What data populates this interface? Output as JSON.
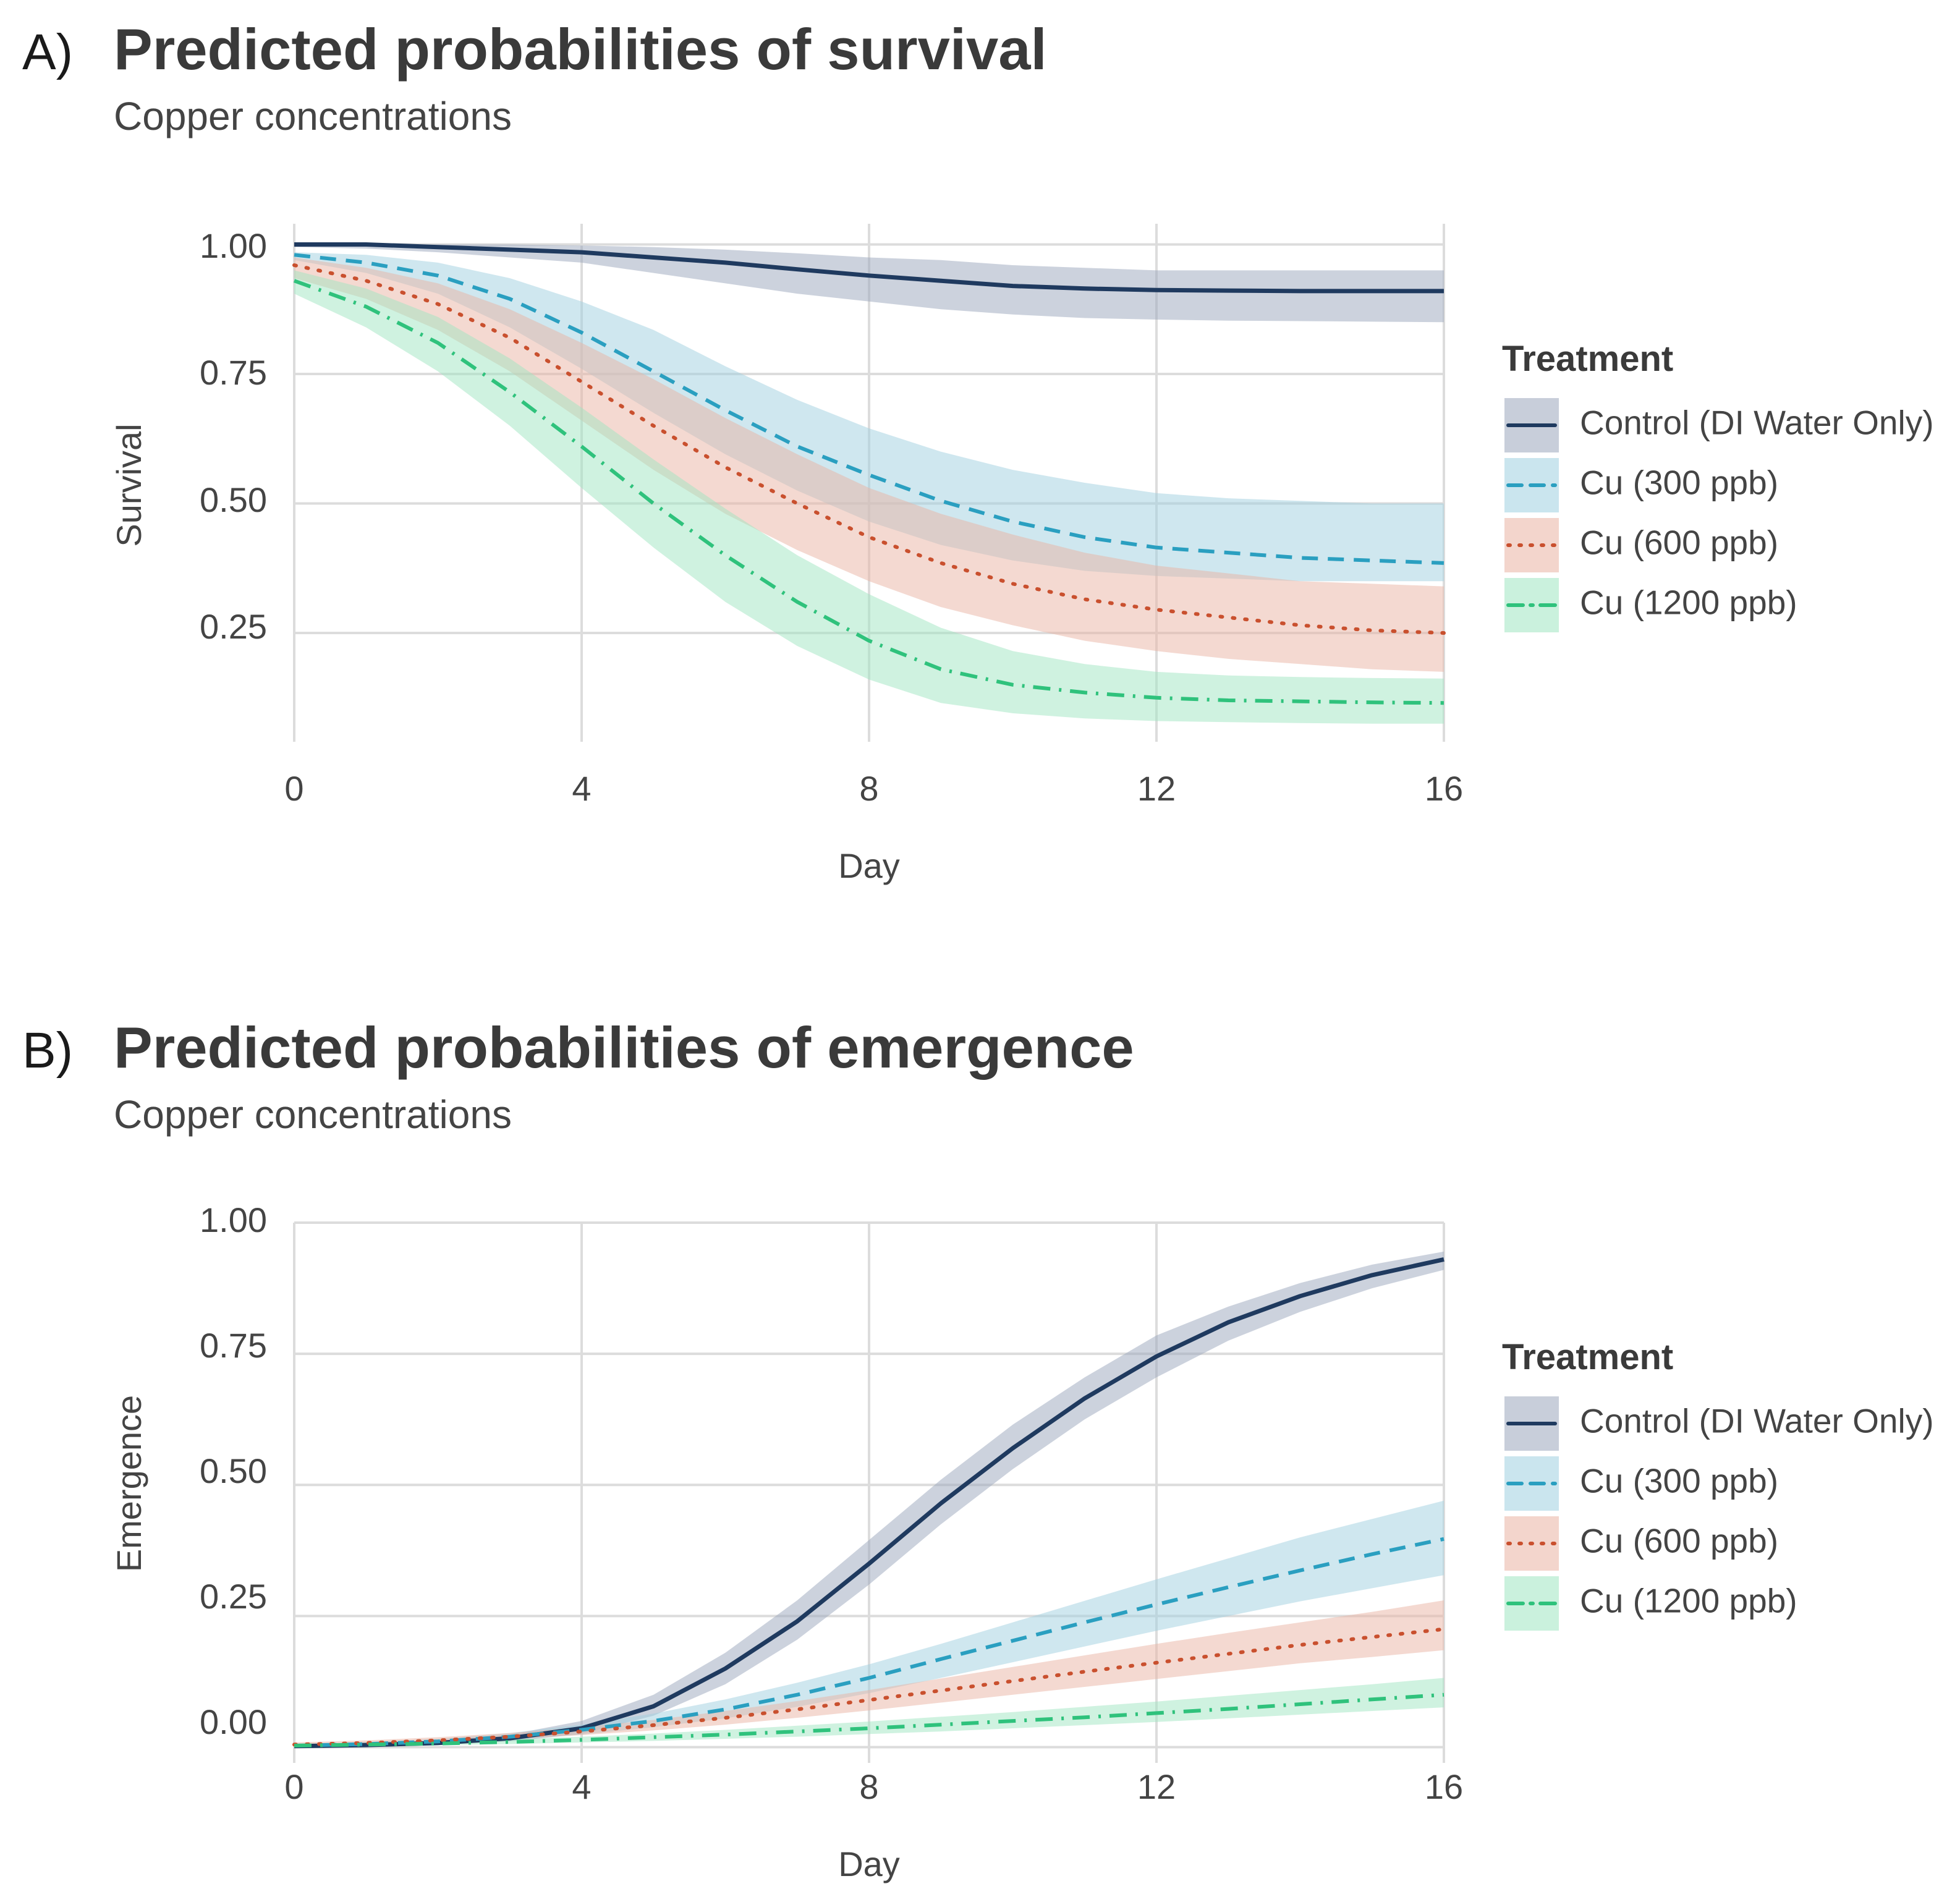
{
  "colors": {
    "control": "#1f3a5f",
    "cu300": "#2a9fc0",
    "cu600": "#c9502e",
    "cu1200": "#2fc27c",
    "control_band": "#9aa6bb",
    "cu300_band": "#9fd0e0",
    "cu600_band": "#eab3a3",
    "cu1200_band": "#9fe6c1"
  },
  "panels": [
    {
      "tag": "A)",
      "title": "Predicted probabilities of survival",
      "subtitle": "Copper concentrations",
      "legend_title": "Treatment",
      "legend_items": [
        "Control (DI Water Only)",
        "Cu (300 ppb)",
        "Cu (600 ppb)",
        "Cu (1200 ppb)"
      ],
      "x_ticks": [
        "0",
        "4",
        "8",
        "12",
        "16"
      ],
      "y_ticks": [
        "0.25",
        "0.50",
        "0.75",
        "1.00"
      ]
    },
    {
      "tag": "B)",
      "title": "Predicted probabilities of emergence",
      "subtitle": "Copper concentrations",
      "legend_title": "Treatment",
      "legend_items": [
        "Control (DI Water Only)",
        "Cu (300 ppb)",
        "Cu (600 ppb)",
        "Cu (1200 ppb)"
      ],
      "x_ticks": [
        "0",
        "4",
        "8",
        "12",
        "16"
      ],
      "y_ticks": [
        "0.00",
        "0.25",
        "0.50",
        "0.75",
        "1.00"
      ]
    }
  ],
  "chart_data": [
    {
      "type": "line",
      "title": "Predicted probabilities of survival",
      "subtitle": "Copper concentrations",
      "xlabel": "Day",
      "ylabel": "Survival",
      "xlim": [
        0,
        16
      ],
      "ylim": [
        0.04,
        1.04
      ],
      "x_ticks": [
        0,
        4,
        8,
        12,
        16
      ],
      "y_ticks": [
        0.25,
        0.5,
        0.75,
        1.0
      ],
      "legend_position": "right",
      "x": [
        0,
        1,
        2,
        3,
        4,
        5,
        6,
        7,
        8,
        9,
        10,
        11,
        12,
        13,
        14,
        15,
        16
      ],
      "series": [
        {
          "name": "Control (DI Water Only)",
          "key": "control",
          "line": "solid",
          "values": [
            1.0,
            1.0,
            0.995,
            0.99,
            0.985,
            0.975,
            0.965,
            0.952,
            0.94,
            0.93,
            0.92,
            0.915,
            0.912,
            0.911,
            0.91,
            0.91,
            0.91
          ],
          "lower": [
            0.995,
            0.992,
            0.985,
            0.975,
            0.965,
            0.945,
            0.925,
            0.905,
            0.89,
            0.875,
            0.865,
            0.858,
            0.855,
            0.853,
            0.852,
            0.851,
            0.85
          ],
          "upper": [
            1.0,
            1.0,
            1.0,
            1.0,
            0.998,
            0.995,
            0.99,
            0.983,
            0.975,
            0.97,
            0.96,
            0.955,
            0.95,
            0.95,
            0.95,
            0.95,
            0.95
          ]
        },
        {
          "name": "Cu (300 ppb)",
          "key": "cu300",
          "line": "dashed",
          "values": [
            0.98,
            0.965,
            0.94,
            0.895,
            0.83,
            0.755,
            0.68,
            0.61,
            0.555,
            0.505,
            0.465,
            0.435,
            0.415,
            0.405,
            0.395,
            0.39,
            0.385
          ],
          "lower": [
            0.97,
            0.945,
            0.905,
            0.84,
            0.76,
            0.675,
            0.595,
            0.525,
            0.465,
            0.42,
            0.39,
            0.37,
            0.36,
            0.355,
            0.35,
            0.35,
            0.35
          ],
          "upper": [
            0.985,
            0.98,
            0.965,
            0.935,
            0.89,
            0.835,
            0.765,
            0.7,
            0.645,
            0.6,
            0.565,
            0.54,
            0.52,
            0.51,
            0.505,
            0.5,
            0.5
          ]
        },
        {
          "name": "Cu (600 ppb)",
          "key": "cu600",
          "line": "dotted",
          "values": [
            0.96,
            0.93,
            0.885,
            0.82,
            0.735,
            0.65,
            0.57,
            0.5,
            0.435,
            0.385,
            0.345,
            0.315,
            0.295,
            0.28,
            0.265,
            0.255,
            0.25
          ],
          "lower": [
            0.935,
            0.895,
            0.835,
            0.755,
            0.66,
            0.565,
            0.48,
            0.41,
            0.35,
            0.3,
            0.265,
            0.235,
            0.215,
            0.2,
            0.19,
            0.18,
            0.175
          ],
          "upper": [
            0.975,
            0.955,
            0.925,
            0.875,
            0.81,
            0.74,
            0.665,
            0.595,
            0.53,
            0.48,
            0.44,
            0.405,
            0.38,
            0.365,
            0.35,
            0.345,
            0.34
          ]
        },
        {
          "name": "Cu (1200 ppb)",
          "key": "cu1200",
          "line": "dashdot",
          "values": [
            0.93,
            0.88,
            0.81,
            0.715,
            0.61,
            0.5,
            0.4,
            0.31,
            0.235,
            0.18,
            0.15,
            0.135,
            0.125,
            0.12,
            0.118,
            0.116,
            0.115
          ],
          "lower": [
            0.905,
            0.84,
            0.755,
            0.65,
            0.53,
            0.415,
            0.31,
            0.225,
            0.16,
            0.115,
            0.095,
            0.085,
            0.08,
            0.078,
            0.076,
            0.075,
            0.075
          ],
          "upper": [
            0.95,
            0.915,
            0.86,
            0.78,
            0.685,
            0.585,
            0.49,
            0.4,
            0.325,
            0.26,
            0.215,
            0.19,
            0.175,
            0.168,
            0.165,
            0.163,
            0.162
          ]
        }
      ]
    },
    {
      "type": "line",
      "title": "Predicted probabilities of emergence",
      "subtitle": "Copper concentrations",
      "xlabel": "Day",
      "ylabel": "Emergence",
      "xlim": [
        0,
        16
      ],
      "ylim": [
        -0.03,
        1.0
      ],
      "x_ticks": [
        0,
        4,
        8,
        12,
        16
      ],
      "y_ticks": [
        0.0,
        0.25,
        0.5,
        0.75,
        1.0
      ],
      "legend_position": "right",
      "x": [
        0,
        1,
        2,
        3,
        4,
        5,
        6,
        7,
        8,
        9,
        10,
        11,
        12,
        13,
        14,
        15,
        16
      ],
      "series": [
        {
          "name": "Control (DI Water Only)",
          "key": "control",
          "line": "solid",
          "values": [
            0.002,
            0.004,
            0.008,
            0.017,
            0.036,
            0.078,
            0.15,
            0.24,
            0.35,
            0.465,
            0.57,
            0.665,
            0.745,
            0.81,
            0.86,
            0.9,
            0.93
          ],
          "lower": [
            0.001,
            0.002,
            0.005,
            0.011,
            0.025,
            0.06,
            0.12,
            0.205,
            0.31,
            0.425,
            0.53,
            0.625,
            0.705,
            0.775,
            0.83,
            0.875,
            0.91
          ],
          "upper": [
            0.004,
            0.007,
            0.013,
            0.024,
            0.05,
            0.1,
            0.18,
            0.28,
            0.395,
            0.51,
            0.615,
            0.705,
            0.785,
            0.84,
            0.885,
            0.92,
            0.945
          ]
        },
        {
          "name": "Cu (300 ppb)",
          "key": "cu300",
          "line": "dashed",
          "values": [
            0.003,
            0.006,
            0.011,
            0.02,
            0.033,
            0.05,
            0.072,
            0.1,
            0.132,
            0.168,
            0.203,
            0.238,
            0.272,
            0.305,
            0.337,
            0.368,
            0.397
          ],
          "lower": [
            0.001,
            0.003,
            0.007,
            0.014,
            0.024,
            0.038,
            0.055,
            0.077,
            0.103,
            0.132,
            0.162,
            0.192,
            0.222,
            0.25,
            0.278,
            0.303,
            0.328
          ],
          "upper": [
            0.006,
            0.01,
            0.016,
            0.027,
            0.043,
            0.064,
            0.091,
            0.123,
            0.158,
            0.197,
            0.238,
            0.279,
            0.32,
            0.36,
            0.4,
            0.435,
            0.47
          ]
        },
        {
          "name": "Cu (600 ppb)",
          "key": "cu600",
          "line": "dotted",
          "values": [
            0.005,
            0.008,
            0.013,
            0.02,
            0.03,
            0.042,
            0.056,
            0.072,
            0.09,
            0.108,
            0.126,
            0.144,
            0.161,
            0.178,
            0.195,
            0.21,
            0.225
          ],
          "lower": [
            0.002,
            0.005,
            0.009,
            0.015,
            0.023,
            0.032,
            0.043,
            0.056,
            0.07,
            0.085,
            0.1,
            0.115,
            0.13,
            0.145,
            0.16,
            0.172,
            0.185
          ],
          "upper": [
            0.009,
            0.013,
            0.019,
            0.027,
            0.038,
            0.052,
            0.069,
            0.088,
            0.109,
            0.131,
            0.153,
            0.175,
            0.197,
            0.218,
            0.238,
            0.258,
            0.28
          ]
        },
        {
          "name": "Cu (1200 ppb)",
          "key": "cu1200",
          "line": "dashdot",
          "values": [
            0.003,
            0.005,
            0.007,
            0.01,
            0.014,
            0.019,
            0.024,
            0.03,
            0.036,
            0.043,
            0.05,
            0.057,
            0.065,
            0.073,
            0.082,
            0.091,
            0.1
          ],
          "lower": [
            0.001,
            0.002,
            0.004,
            0.006,
            0.009,
            0.012,
            0.016,
            0.02,
            0.025,
            0.03,
            0.036,
            0.042,
            0.048,
            0.055,
            0.062,
            0.069,
            0.076
          ],
          "upper": [
            0.005,
            0.008,
            0.011,
            0.015,
            0.02,
            0.026,
            0.033,
            0.041,
            0.049,
            0.058,
            0.067,
            0.077,
            0.087,
            0.098,
            0.109,
            0.12,
            0.132
          ]
        }
      ]
    }
  ]
}
